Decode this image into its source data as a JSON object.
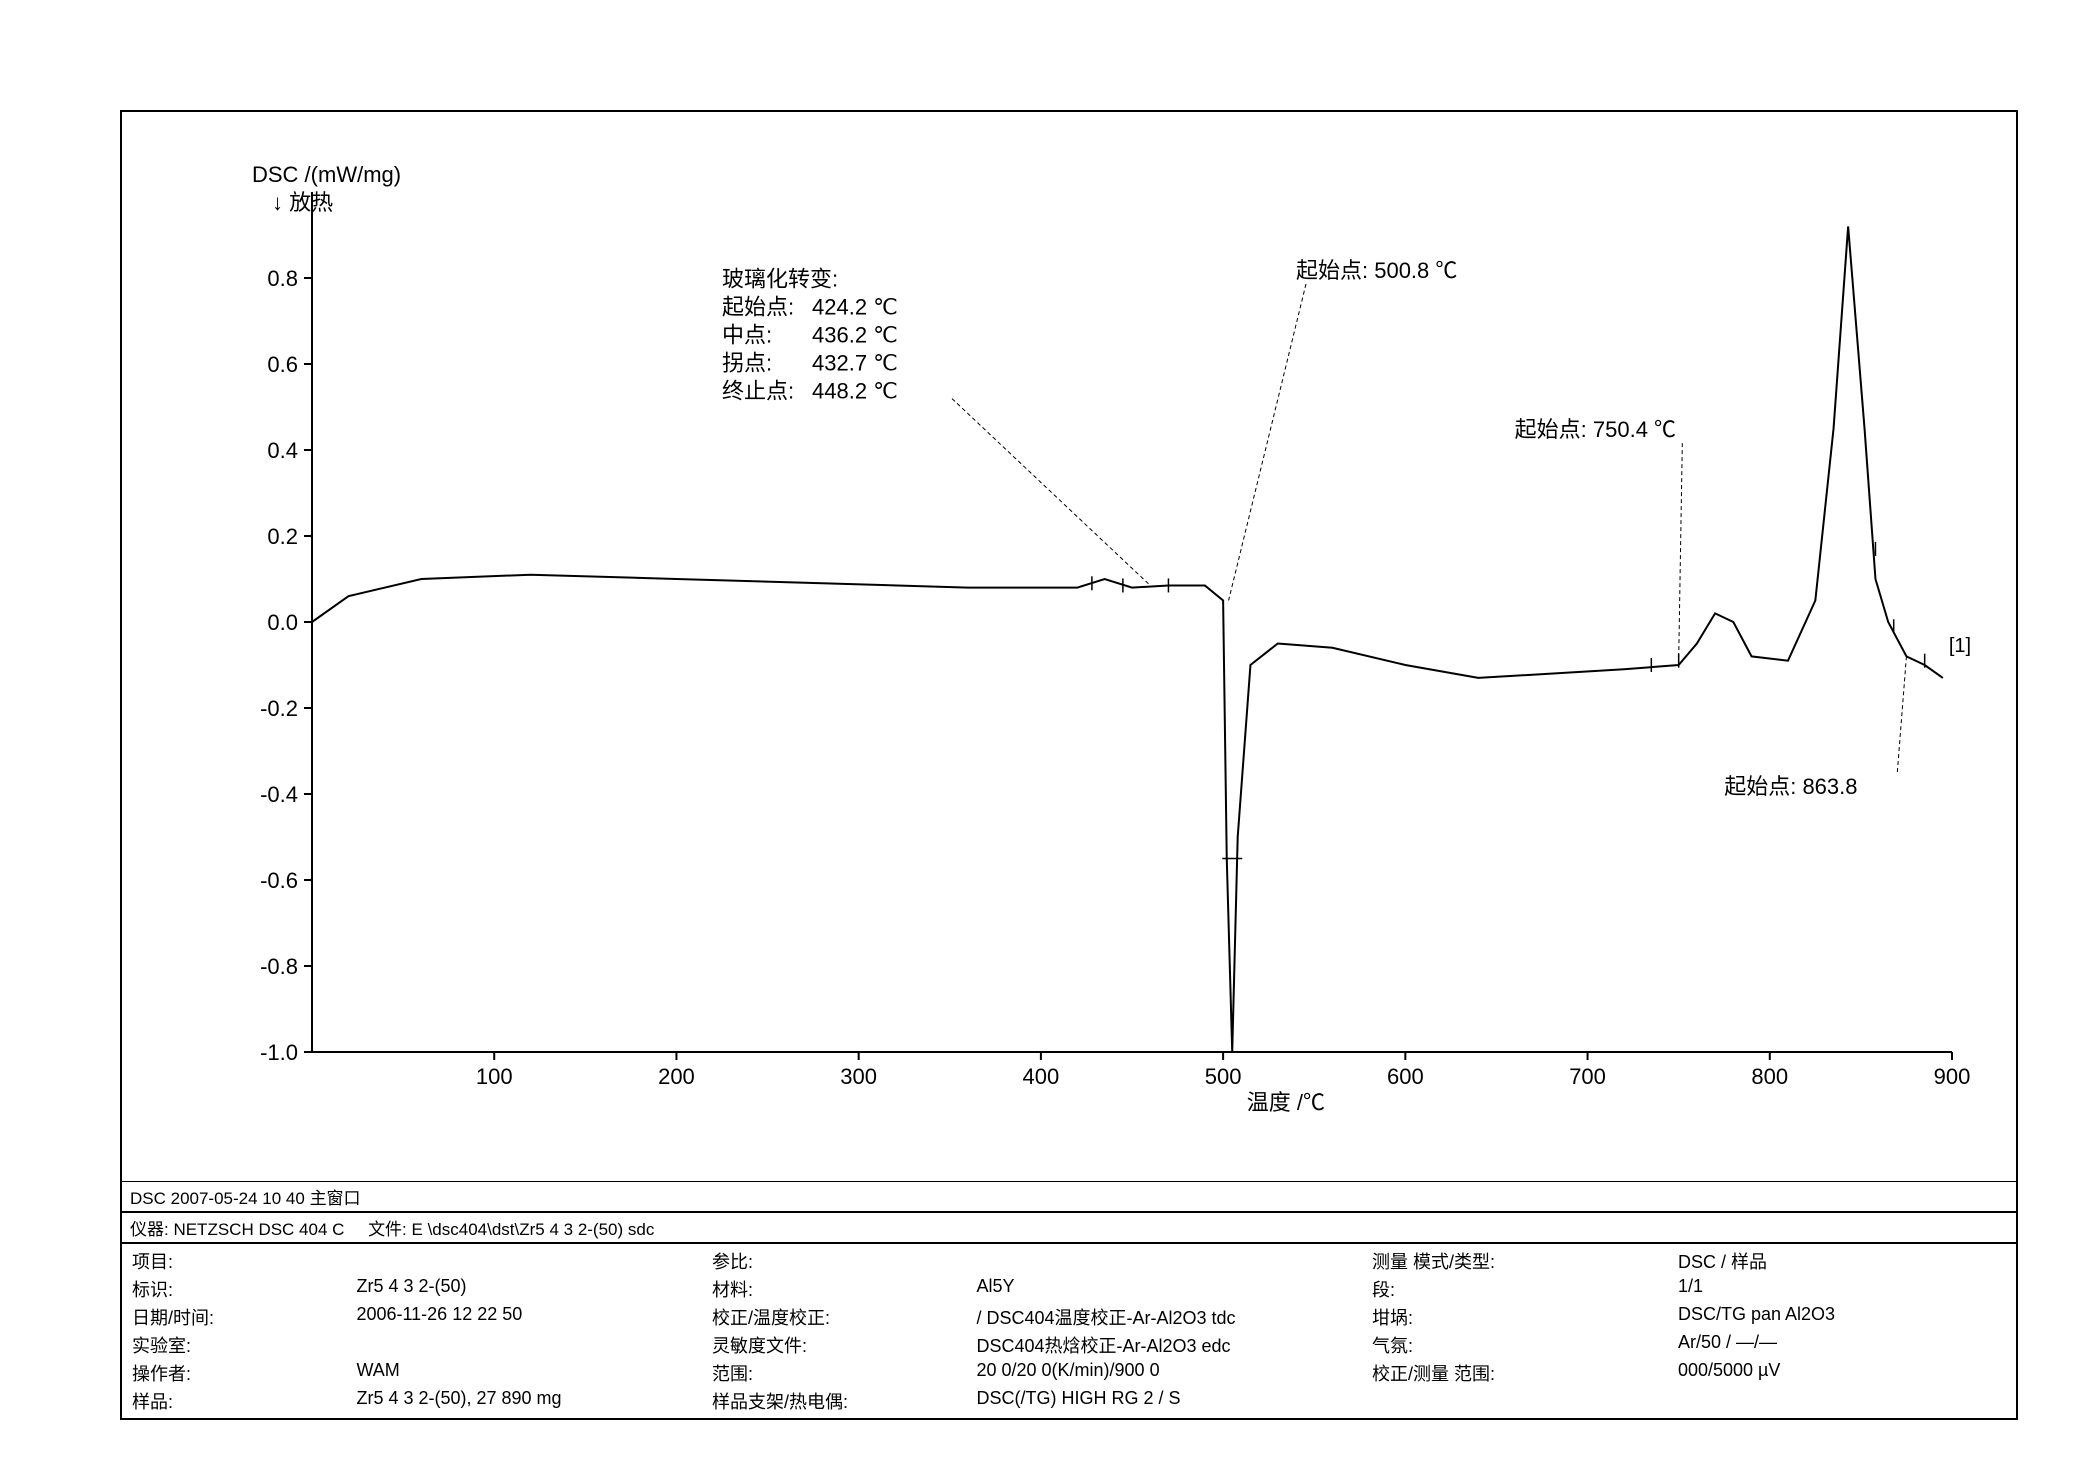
{
  "chart": {
    "type": "line",
    "y_axis_title": "DSC /(mW/mg)",
    "exo_label": "↓ 放热",
    "x_axis_title": "温度 /℃",
    "xlim": [
      0,
      900
    ],
    "ylim": [
      -1.0,
      1.0
    ],
    "xticks": [
      100,
      200,
      300,
      400,
      500,
      600,
      700,
      800,
      900
    ],
    "yticks": [
      -1.0,
      -0.8,
      -0.6,
      -0.4,
      -0.2,
      0.0,
      0.2,
      0.4,
      0.6,
      0.8
    ],
    "line_color": "#000000",
    "background": "#ffffff",
    "axis_color": "#000000",
    "tick_fontsize": 22,
    "title_fontsize": 22,
    "line_width": 2,
    "series_label": "[1]",
    "data": [
      [
        0,
        0.0
      ],
      [
        20,
        0.06
      ],
      [
        60,
        0.1
      ],
      [
        120,
        0.11
      ],
      [
        200,
        0.1
      ],
      [
        280,
        0.09
      ],
      [
        360,
        0.08
      ],
      [
        420,
        0.08
      ],
      [
        435,
        0.1
      ],
      [
        450,
        0.08
      ],
      [
        470,
        0.085
      ],
      [
        490,
        0.085
      ],
      [
        500,
        0.05
      ],
      [
        502,
        -0.55
      ],
      [
        505,
        -1.0
      ],
      [
        508,
        -0.5
      ],
      [
        515,
        -0.1
      ],
      [
        530,
        -0.05
      ],
      [
        560,
        -0.06
      ],
      [
        600,
        -0.1
      ],
      [
        640,
        -0.13
      ],
      [
        680,
        -0.12
      ],
      [
        720,
        -0.11
      ],
      [
        750,
        -0.1
      ],
      [
        760,
        -0.05
      ],
      [
        770,
        0.02
      ],
      [
        780,
        0.0
      ],
      [
        790,
        -0.08
      ],
      [
        810,
        -0.09
      ],
      [
        825,
        0.05
      ],
      [
        835,
        0.45
      ],
      [
        843,
        0.92
      ],
      [
        852,
        0.45
      ],
      [
        858,
        0.1
      ],
      [
        865,
        0.0
      ],
      [
        875,
        -0.08
      ],
      [
        885,
        -0.1
      ],
      [
        895,
        -0.13
      ]
    ],
    "tick_marks": [
      [
        428,
        0.09
      ],
      [
        445,
        0.085
      ],
      [
        470,
        0.085
      ],
      [
        735,
        -0.1
      ],
      [
        750,
        -0.09
      ],
      [
        858,
        0.17
      ],
      [
        868,
        -0.01
      ],
      [
        885,
        -0.09
      ]
    ],
    "annotations": {
      "glass": {
        "title": "玻璃化转变:",
        "rows": [
          [
            "起始点:",
            "424.2 ℃"
          ],
          [
            "中点:",
            "436.2 ℃"
          ],
          [
            "拐点:",
            "432.7 ℃"
          ],
          [
            "终止点:",
            "448.2 ℃"
          ]
        ],
        "pointer_to": [
          460,
          0.085
        ]
      },
      "onset500": {
        "text": "起始点: 500.8 ℃",
        "pointer_to": [
          503,
          0.05
        ]
      },
      "onset750": {
        "text": "起始点: 750.4 ℃",
        "pointer_to": [
          750,
          -0.09
        ]
      },
      "onset863": {
        "text": "起始点: 863.8",
        "pointer_to": [
          875,
          -0.08
        ]
      }
    }
  },
  "meta_header": "DSC   2007-05-24 10 40  主窗口",
  "meta_header2": {
    "left": "仪器:   NETZSCH DSC 404 C",
    "right": "文件:   E \\dsc404\\dst\\Zr5 4 3 2-(50) sdc"
  },
  "meta_col1": [
    [
      "项目:",
      ""
    ],
    [
      "标识:",
      "Zr5 4 3 2-(50)"
    ],
    [
      "日期/时间:",
      "2006-11-26 12 22 50"
    ],
    [
      "实验室:",
      ""
    ],
    [
      "操作者:",
      "WAM"
    ],
    [
      "样品:",
      "Zr5 4 3 2-(50), 27 890 mg"
    ]
  ],
  "meta_col2": [
    [
      "参比:",
      ""
    ],
    [
      "材料:",
      "Al5Y"
    ],
    [
      "校正/温度校正:",
      "/ DSC404温度校正-Ar-Al2O3 tdc"
    ],
    [
      "灵敏度文件:",
      "DSC404热焓校正-Ar-Al2O3 edc"
    ],
    [
      "范围:",
      "20 0/20 0(K/min)/900 0"
    ],
    [
      "样品支架/热电偶:",
      "DSC(/TG) HIGH RG 2 / S"
    ]
  ],
  "meta_col3": [
    [
      "测量 模式/类型:",
      "DSC / 样品"
    ],
    [
      "段:",
      "1/1"
    ],
    [
      "坩埚:",
      "DSC/TG pan Al2O3"
    ],
    [
      "气氛:",
      "Ar/50 / —/—"
    ],
    [
      "校正/测量 范围:",
      "000/5000 µV"
    ]
  ]
}
